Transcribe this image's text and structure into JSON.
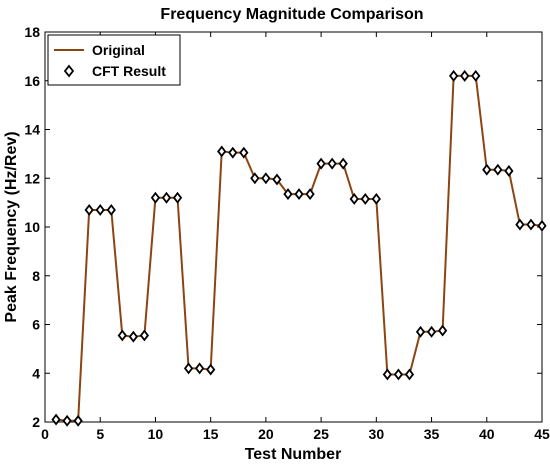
{
  "chart_data": {
    "type": "line",
    "title": "Frequency Magnitude Comparison",
    "xlabel": "Test Number",
    "ylabel": "Peak Frequency (Hz/Rev)",
    "xlim": [
      0,
      45
    ],
    "ylim": [
      2,
      18
    ],
    "xticks": [
      0,
      5,
      10,
      15,
      20,
      25,
      30,
      35,
      40,
      45
    ],
    "yticks": [
      2,
      4,
      6,
      8,
      10,
      12,
      14,
      16,
      18
    ],
    "grid": false,
    "legend_position": "top-left",
    "x": [
      1,
      2,
      3,
      4,
      5,
      6,
      7,
      8,
      9,
      10,
      11,
      12,
      13,
      14,
      15,
      16,
      17,
      18,
      19,
      20,
      21,
      22,
      23,
      24,
      25,
      26,
      27,
      28,
      29,
      30,
      31,
      32,
      33,
      34,
      35,
      36,
      37,
      38,
      39,
      40,
      41,
      42,
      43,
      44,
      45
    ],
    "series": [
      {
        "name": "Original",
        "style": "line",
        "color": "#8b4513",
        "values": [
          2.1,
          2.05,
          2.05,
          10.7,
          10.7,
          10.7,
          5.55,
          5.5,
          5.55,
          11.2,
          11.2,
          11.2,
          4.2,
          4.2,
          4.15,
          13.1,
          13.05,
          13.05,
          12.0,
          12.0,
          11.95,
          11.35,
          11.35,
          11.35,
          12.6,
          12.6,
          12.6,
          11.15,
          11.15,
          11.15,
          3.95,
          3.95,
          3.95,
          5.7,
          5.7,
          5.75,
          16.2,
          16.2,
          16.2,
          12.35,
          12.35,
          12.3,
          10.1,
          10.1,
          10.05
        ]
      },
      {
        "name": "CFT Result",
        "style": "markers",
        "marker": "diamond",
        "color": "#000000",
        "values": [
          2.1,
          2.05,
          2.05,
          10.7,
          10.7,
          10.7,
          5.55,
          5.5,
          5.55,
          11.2,
          11.2,
          11.2,
          4.2,
          4.2,
          4.15,
          13.1,
          13.05,
          13.05,
          12.0,
          12.0,
          11.95,
          11.35,
          11.35,
          11.35,
          12.6,
          12.6,
          12.6,
          11.15,
          11.15,
          11.15,
          3.95,
          3.95,
          3.95,
          5.7,
          5.7,
          5.75,
          16.2,
          16.2,
          16.2,
          12.35,
          12.35,
          12.3,
          10.1,
          10.1,
          10.05
        ]
      }
    ]
  }
}
